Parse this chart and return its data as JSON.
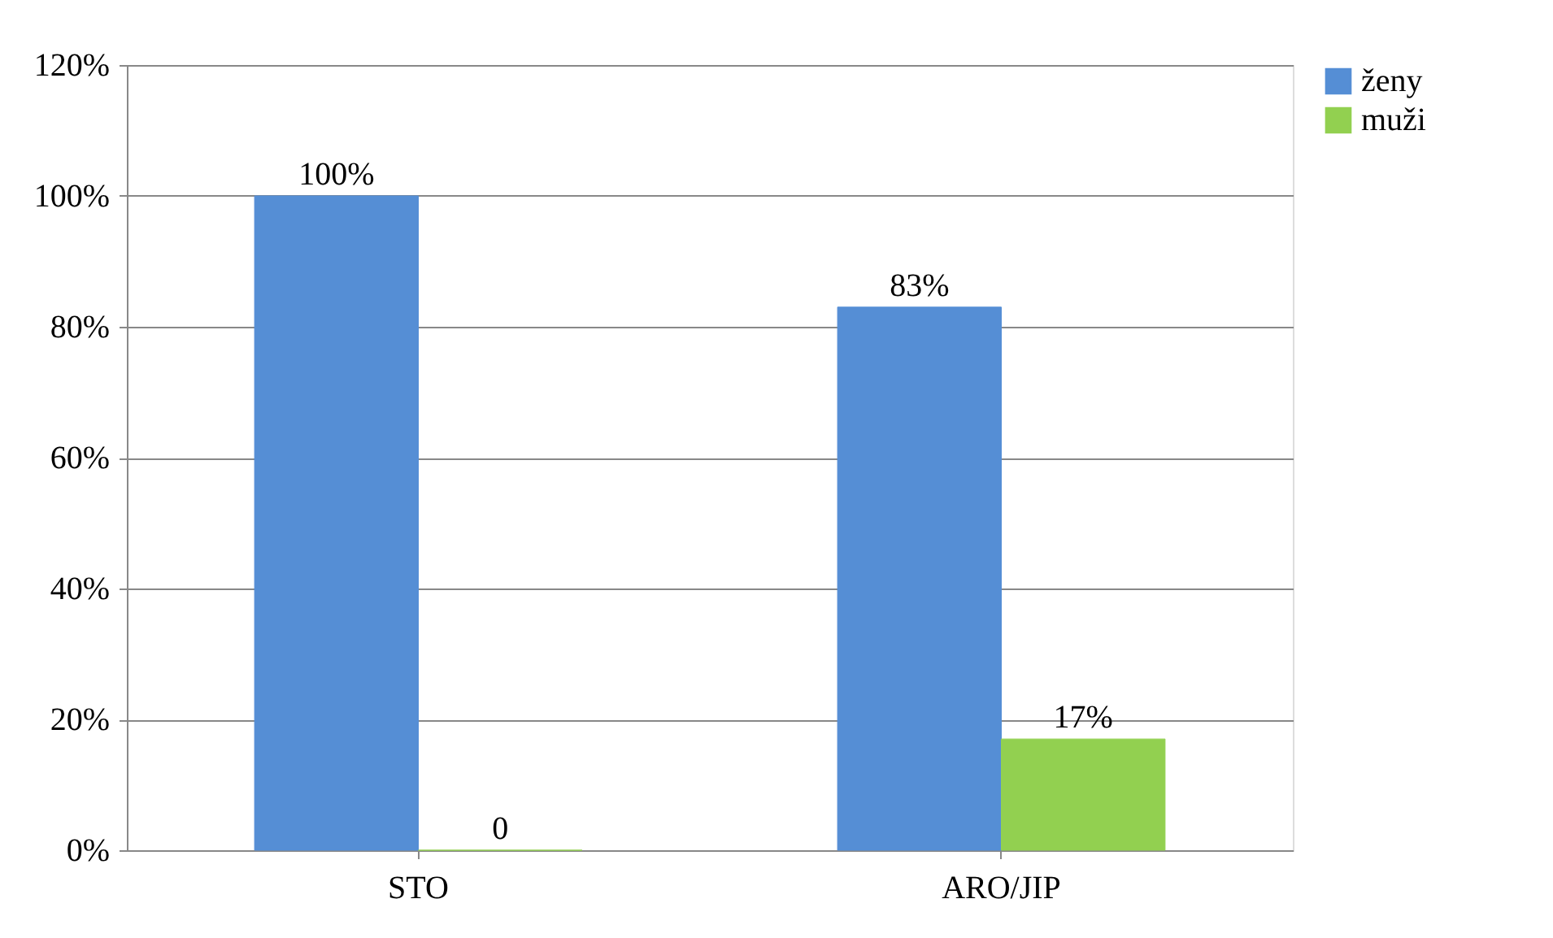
{
  "chart_data": {
    "type": "bar",
    "categories": [
      "STO",
      "ARO/JIP"
    ],
    "series": [
      {
        "name": "ženy",
        "color": "#558ed5",
        "values": [
          100,
          83
        ],
        "value_labels": [
          "100%",
          "83%"
        ]
      },
      {
        "name": "muži",
        "color": "#92d050",
        "values": [
          0,
          17
        ],
        "value_labels": [
          "0",
          "17%"
        ]
      }
    ],
    "ylim": [
      0,
      120
    ],
    "yticks": [
      {
        "value": 0,
        "label": "0%"
      },
      {
        "value": 20,
        "label": "20%"
      },
      {
        "value": 40,
        "label": "40%"
      },
      {
        "value": 60,
        "label": "60%"
      },
      {
        "value": 80,
        "label": "80%"
      },
      {
        "value": 100,
        "label": "100%"
      },
      {
        "value": 120,
        "label": "120%"
      }
    ],
    "grid": "y",
    "legend": "right"
  }
}
